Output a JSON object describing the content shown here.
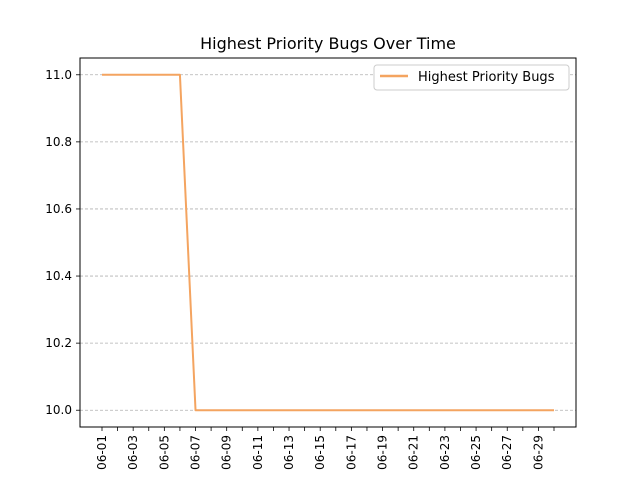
{
  "chart_data": {
    "type": "line",
    "title": "Highest Priority Bugs Over Time",
    "xlabel": "",
    "ylabel": "",
    "x": [
      "06-01",
      "06-02",
      "06-03",
      "06-04",
      "06-05",
      "06-06",
      "06-07",
      "06-08",
      "06-09",
      "06-10",
      "06-11",
      "06-12",
      "06-13",
      "06-14",
      "06-15",
      "06-16",
      "06-17",
      "06-18",
      "06-19",
      "06-20",
      "06-21",
      "06-22",
      "06-23",
      "06-24",
      "06-25",
      "06-26",
      "06-27",
      "06-28",
      "06-29",
      "06-30"
    ],
    "x_tick_labels": [
      "06-01",
      "06-03",
      "06-05",
      "06-07",
      "06-09",
      "06-11",
      "06-13",
      "06-15",
      "06-17",
      "06-19",
      "06-21",
      "06-23",
      "06-25",
      "06-27",
      "06-29"
    ],
    "series": [
      {
        "name": "Highest Priority Bugs",
        "color": "#f4a460",
        "values": [
          11,
          11,
          11,
          11,
          11,
          11,
          10,
          10,
          10,
          10,
          10,
          10,
          10,
          10,
          10,
          10,
          10,
          10,
          10,
          10,
          10,
          10,
          10,
          10,
          10,
          10,
          10,
          10,
          10,
          10
        ]
      }
    ],
    "y_ticks": [
      "10.0",
      "10.2",
      "10.4",
      "10.6",
      "10.8",
      "11.0"
    ],
    "ylim": [
      9.95,
      11.05
    ],
    "grid": "horizontal dashed",
    "legend_position": "top-right"
  }
}
